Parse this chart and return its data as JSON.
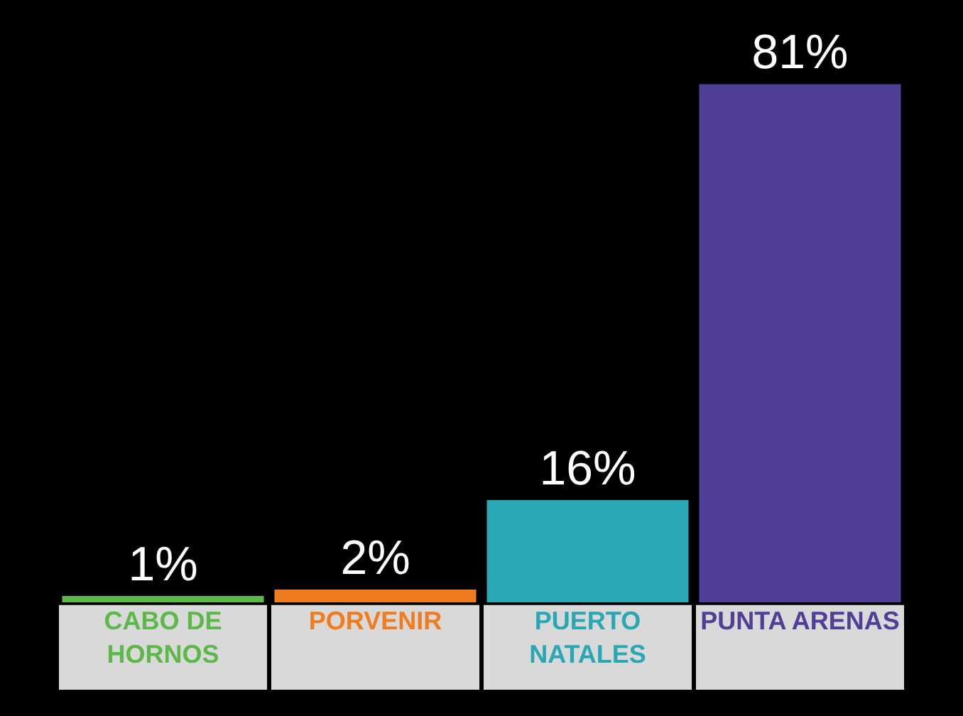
{
  "chart_data": {
    "type": "bar",
    "categories": [
      "CABO DE\nHORNOS",
      "PORVENIR",
      "PUERTO\nNATALES",
      "PUNTA ARENAS"
    ],
    "values": [
      1,
      2,
      16,
      81
    ],
    "colors": [
      "#5cb848",
      "#f07c22",
      "#2aa7b5",
      "#4f3f97"
    ],
    "data_labels": true,
    "value_labels": [
      "1%",
      "2%",
      "16%",
      "81%"
    ],
    "grid": false,
    "legend": false
  }
}
